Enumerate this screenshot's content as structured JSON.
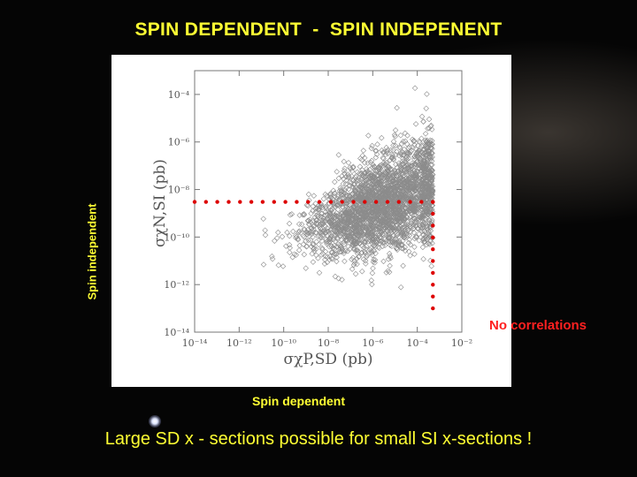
{
  "slide": {
    "title": "SPIN DEPENDENT  -  SPIN INDEPENENT",
    "ylabel": "Spin independent",
    "xlabel": "Spin dependent",
    "callout": "No correlations",
    "bottom_text": "Large SD x - sections possible for small SI x-sections !"
  },
  "colors": {
    "title": "#ffff33",
    "callout": "#ff2020",
    "points": "#8c8c8c",
    "guide_dots": "#dd0000"
  },
  "chart_data": {
    "type": "scatter",
    "x_scale": "log",
    "y_scale": "log",
    "xlim": [
      1e-14,
      0.01
    ],
    "ylim": [
      1e-14,
      0.001
    ],
    "x_ticks": [
      {
        "value": 1e-14,
        "label": "10⁻¹⁴"
      },
      {
        "value": 1e-12,
        "label": "10⁻¹²"
      },
      {
        "value": 1e-10,
        "label": "10⁻¹⁰"
      },
      {
        "value": 1e-08,
        "label": "10⁻⁸"
      },
      {
        "value": 1e-06,
        "label": "10⁻⁶"
      },
      {
        "value": 0.0001,
        "label": "10⁻⁴"
      },
      {
        "value": 0.01,
        "label": "10⁻²"
      }
    ],
    "y_ticks": [
      {
        "value": 0.0001,
        "label": "10⁻⁴"
      },
      {
        "value": 1e-06,
        "label": "10⁻⁶"
      },
      {
        "value": 1e-08,
        "label": "10⁻⁸"
      },
      {
        "value": 1e-10,
        "label": "10⁻¹⁰"
      },
      {
        "value": 1e-12,
        "label": "10⁻¹²"
      },
      {
        "value": 1e-14,
        "label": "10⁻¹⁴"
      }
    ],
    "xlabel": "σχP,SD  (pb)",
    "ylabel": "σχN,SI  (pb)",
    "series": [
      {
        "marker": "open-diamond",
        "distribution": {
          "log10_x_center": -5.5,
          "log10_x_spread": 1.6,
          "log10_x_max": -3.3,
          "log10_y_center": -8.6,
          "log10_y_spread": 1.0,
          "n_points": 2800
        }
      }
    ],
    "guide_lines": [
      {
        "orientation": "horizontal",
        "y": 3e-09,
        "x_from": 1e-14,
        "x_to": 0.0005
      },
      {
        "orientation": "vertical",
        "x": 0.0005,
        "y_from": 3e-09,
        "y_to": 1e-13
      }
    ]
  }
}
